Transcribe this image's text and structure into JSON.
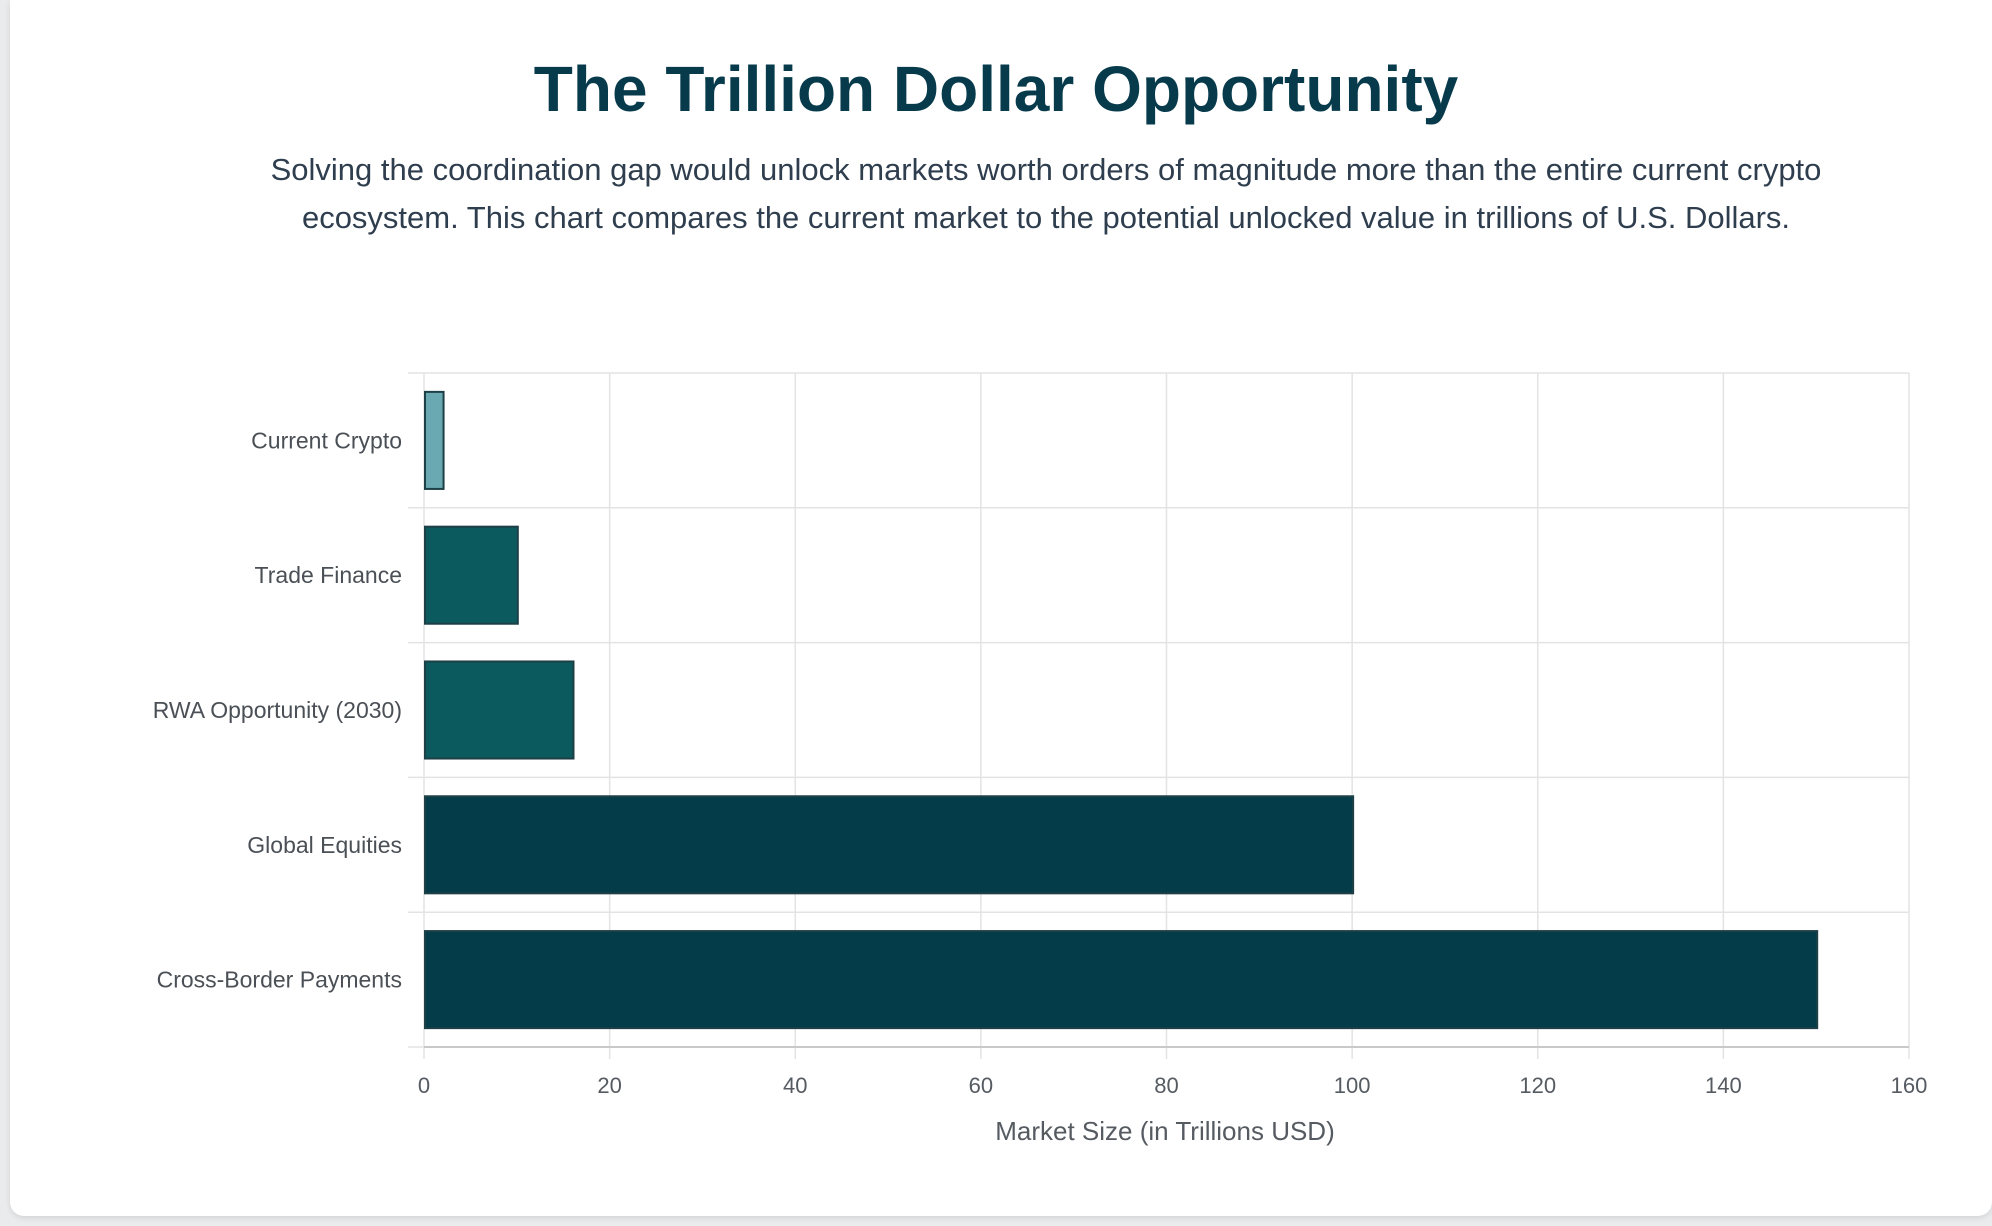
{
  "header": {
    "title": "The Trillion Dollar Opportunity",
    "subtitle": "Solving the coordination gap would unlock markets worth orders of magnitude more than the entire current crypto ecosystem. This chart compares the current market to the potential unlocked value in trillions of U.S. Dollars."
  },
  "chart_data": {
    "type": "bar",
    "orientation": "horizontal",
    "categories": [
      "Current Crypto",
      "Trade Finance",
      "RWA Opportunity (2030)",
      "Global Equities",
      "Cross-Border Payments"
    ],
    "values": [
      2,
      10,
      16,
      100,
      150
    ],
    "colors": [
      "#6aa8b2",
      "#0b5a5e",
      "#0b5a5e",
      "#053c4a",
      "#053c4a"
    ],
    "border_color": "#1d3f46",
    "xlabel": "Market Size (in Trillions USD)",
    "ylabel": "",
    "xlim": [
      0,
      160
    ],
    "xticks": [
      0,
      20,
      40,
      60,
      80,
      100,
      120,
      140,
      160
    ],
    "grid": true,
    "legend": "none"
  }
}
